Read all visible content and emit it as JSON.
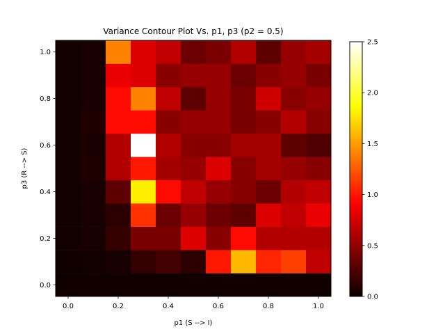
{
  "chart_data": {
    "type": "heatmap",
    "title": "Variance Contour Plot Vs. p1, p3 (p2 = 0.5)",
    "xlabel": "p1 (S --> I)",
    "ylabel": "p3 (R --> S)",
    "x_values": [
      0.0,
      0.1,
      0.2,
      0.3,
      0.4,
      0.5,
      0.6,
      0.7,
      0.8,
      0.9,
      1.0
    ],
    "y_values": [
      0.0,
      0.1,
      0.2,
      0.3,
      0.4,
      0.5,
      0.6,
      0.7,
      0.8,
      0.9,
      1.0
    ],
    "xlim": [
      -0.05,
      1.05
    ],
    "ylim": [
      -0.05,
      1.05
    ],
    "x_ticks": [
      0.0,
      0.2,
      0.4,
      0.6,
      0.8,
      1.0
    ],
    "x_tick_labels": [
      "0.0",
      "0.2",
      "0.4",
      "0.6",
      "0.8",
      "1.0"
    ],
    "y_ticks": [
      0.0,
      0.2,
      0.4,
      0.6,
      0.8,
      1.0
    ],
    "y_tick_labels": [
      "0.0",
      "0.2",
      "0.4",
      "0.6",
      "0.8",
      "1.0"
    ],
    "colormap": "hot",
    "colorbar": {
      "vmin": 0.0,
      "vmax": 2.5,
      "ticks": [
        0.0,
        0.5,
        1.0,
        1.5,
        2.0,
        2.5
      ],
      "tick_labels": [
        "0.0",
        "0.5",
        "1.0",
        "1.5",
        "2.0",
        "2.5"
      ]
    },
    "grid": false,
    "values_note_rows_are_y_from_0_to_1": true,
    "values": [
      [
        0.02,
        0.02,
        0.02,
        0.02,
        0.02,
        0.02,
        0.02,
        0.02,
        0.02,
        0.02,
        0.02
      ],
      [
        0.02,
        0.03,
        0.04,
        0.15,
        0.2,
        0.12,
        1.0,
        1.6,
        1.05,
        1.15,
        0.65
      ],
      [
        0.03,
        0.04,
        0.15,
        0.4,
        0.4,
        0.75,
        0.45,
        0.95,
        0.6,
        0.6,
        0.6
      ],
      [
        0.03,
        0.05,
        0.12,
        1.1,
        0.35,
        0.5,
        0.35,
        0.3,
        0.75,
        0.65,
        0.8
      ],
      [
        0.03,
        0.05,
        0.3,
        1.8,
        0.95,
        0.65,
        0.5,
        0.45,
        0.35,
        0.6,
        0.65
      ],
      [
        0.03,
        0.07,
        0.6,
        1.0,
        0.55,
        0.5,
        0.75,
        0.45,
        0.55,
        0.5,
        0.45
      ],
      [
        0.03,
        0.06,
        0.6,
        2.5,
        0.6,
        0.45,
        0.45,
        0.55,
        0.55,
        0.3,
        0.25
      ],
      [
        0.03,
        0.08,
        0.95,
        0.95,
        0.45,
        0.5,
        0.5,
        0.4,
        0.45,
        0.6,
        0.45
      ],
      [
        0.03,
        0.05,
        0.95,
        1.4,
        0.65,
        0.3,
        0.5,
        0.4,
        0.7,
        0.45,
        0.5
      ],
      [
        0.03,
        0.05,
        0.8,
        0.75,
        0.45,
        0.5,
        0.5,
        0.35,
        0.45,
        0.5,
        0.4
      ],
      [
        0.03,
        0.05,
        1.4,
        0.75,
        0.65,
        0.35,
        0.4,
        0.6,
        0.3,
        0.5,
        0.55
      ]
    ]
  }
}
